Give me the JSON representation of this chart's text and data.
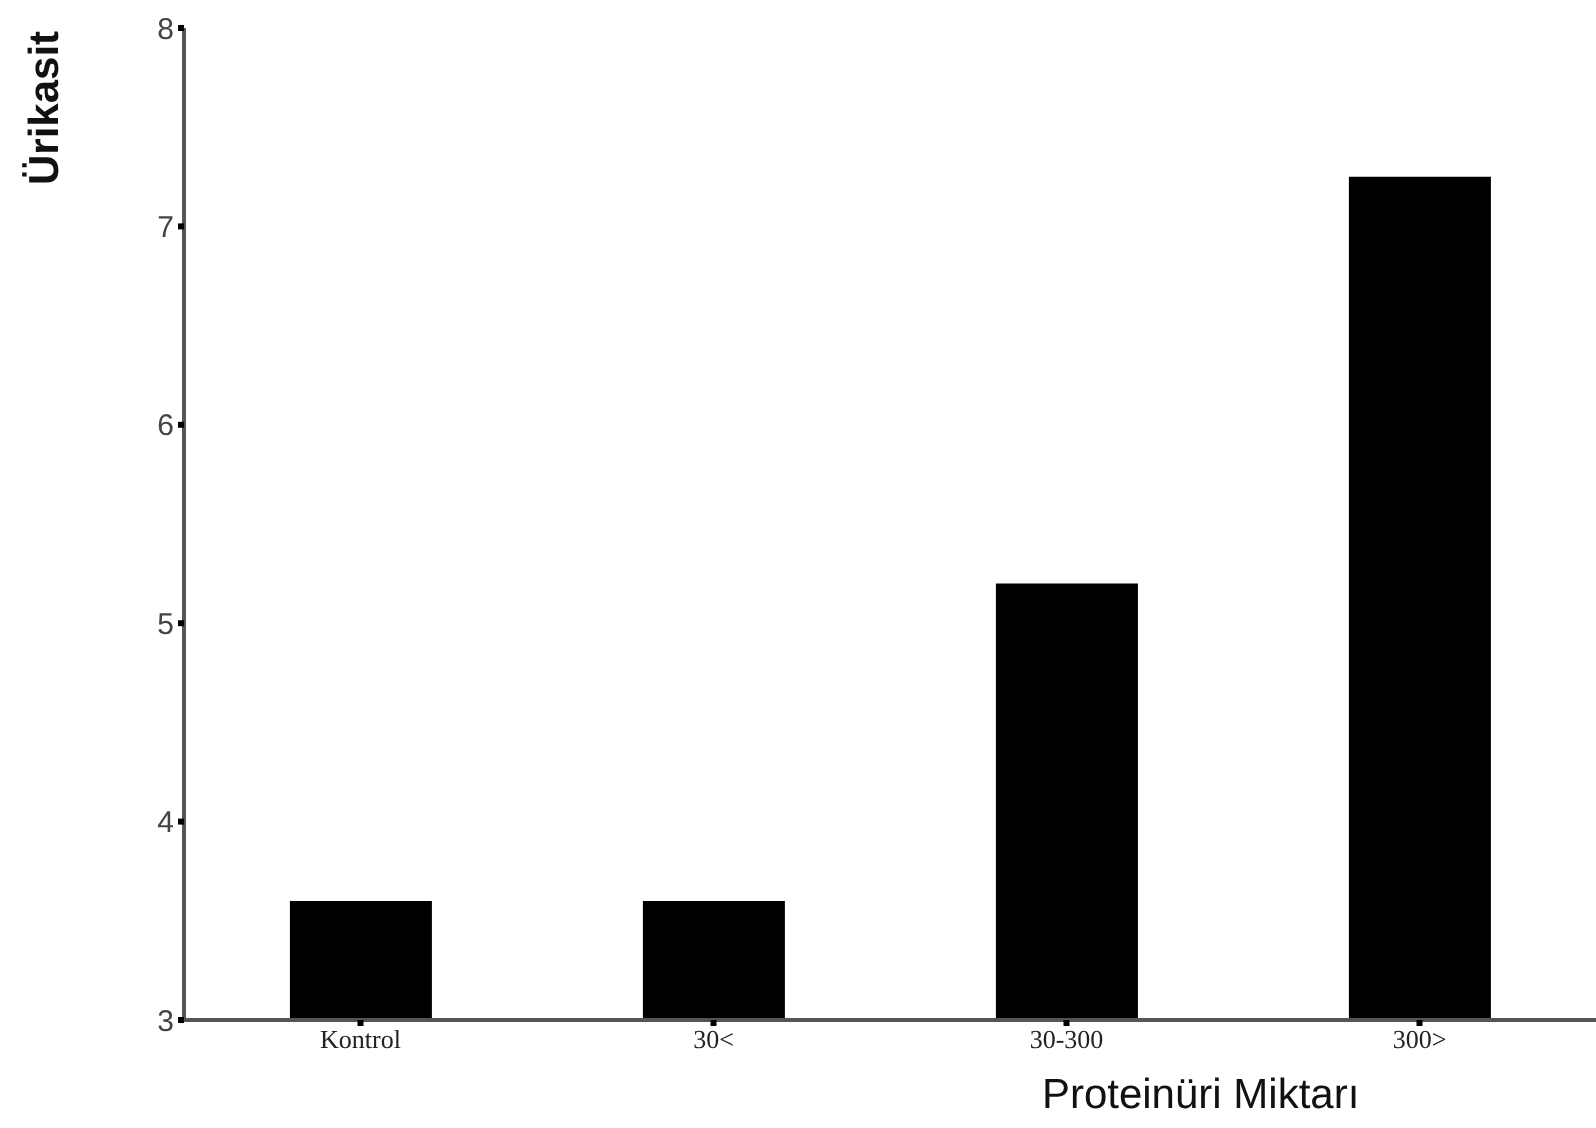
{
  "chart_data": {
    "type": "bar",
    "xlabel": "Proteinüri Miktarı",
    "ylabel": "Ürikasit",
    "categories": [
      "Kontrol",
      "30<",
      "30-300",
      "300>"
    ],
    "values": [
      3.6,
      3.6,
      5.2,
      7.25
    ],
    "color": "#000000",
    "ylim": [
      3,
      8
    ],
    "yticks": [
      3,
      4,
      5,
      6,
      7,
      8
    ],
    "grid": false,
    "legend": false
  }
}
